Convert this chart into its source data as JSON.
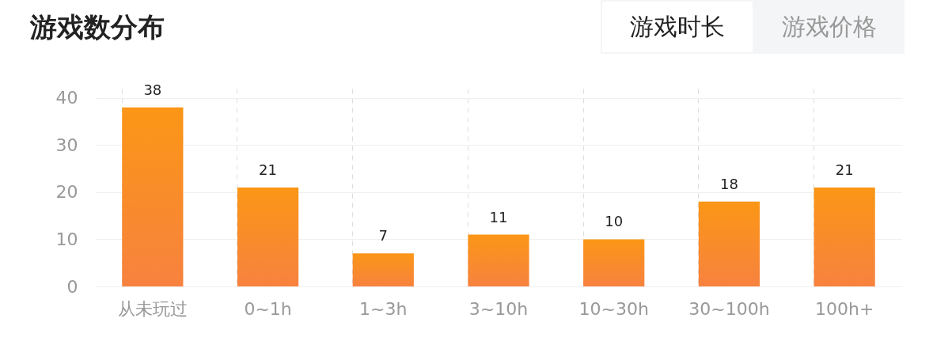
{
  "chart_data": {
    "type": "bar",
    "title": "游戏数分布",
    "annotations": [
      "游戏时长",
      "游戏价格"
    ],
    "categories": [
      "从未玩过",
      "0~1h",
      "1~3h",
      "3~10h",
      "10~30h",
      "30~100h",
      "100h+"
    ],
    "values": [
      38,
      21,
      7,
      11,
      10,
      18,
      21
    ],
    "color": "#fb9616",
    "ylim": [
      0,
      42
    ],
    "yticks": [
      0,
      10,
      20,
      30,
      40
    ],
    "grid": true,
    "data_labels": true
  }
}
